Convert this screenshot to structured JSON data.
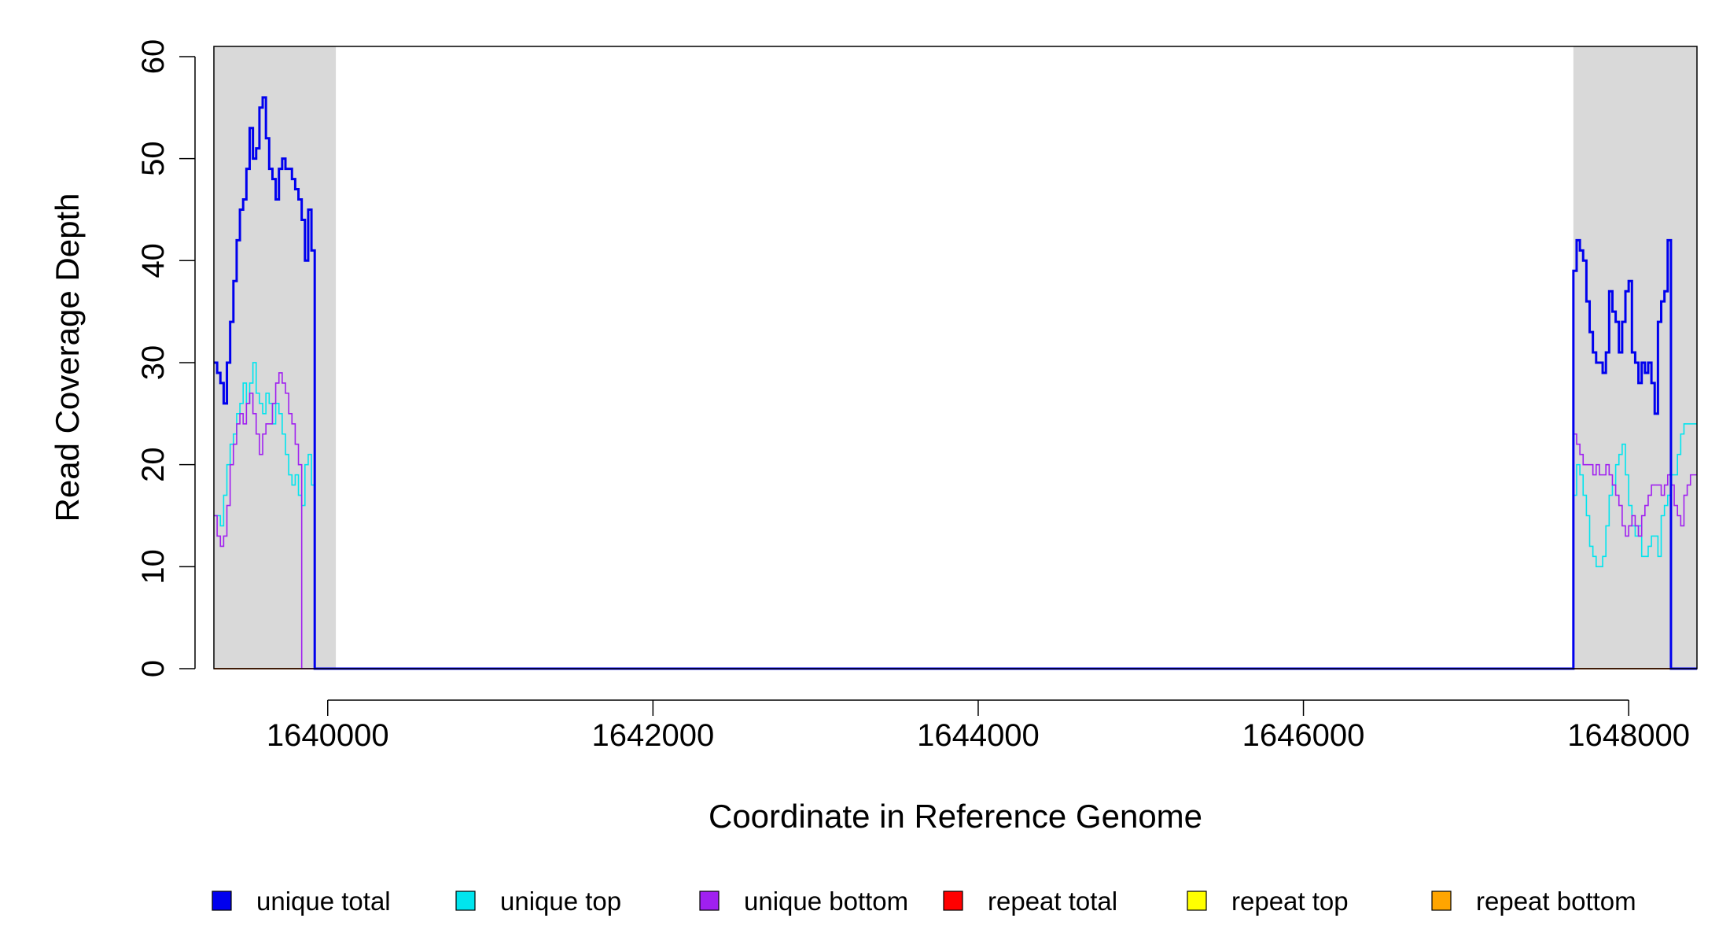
{
  "chart_data": {
    "type": "line",
    "title": "",
    "xlabel": "Coordinate in Reference Genome",
    "ylabel": "Read Coverage Depth",
    "xlim": [
      1639300,
      1648420
    ],
    "ylim": [
      0,
      61
    ],
    "x_ticks": [
      1640000,
      1642000,
      1644000,
      1646000,
      1648000
    ],
    "x_tick_labels": [
      "1640000",
      "1642000",
      "1644000",
      "1646000",
      "1648000"
    ],
    "y_ticks": [
      0,
      10,
      20,
      30,
      40,
      50,
      60
    ],
    "y_tick_labels": [
      "0",
      "10",
      "20",
      "30",
      "40",
      "50",
      "60"
    ],
    "grid": false,
    "legend_position": "bottom",
    "shaded_regions": [
      {
        "x_start": 1639300,
        "x_end": 1640050,
        "color": "#d9d9d9"
      },
      {
        "x_start": 1647660,
        "x_end": 1648420,
        "color": "#d9d9d9"
      }
    ],
    "series": [
      {
        "name": "unique total",
        "color": "#0000ee",
        "width": 3,
        "x": [
          1639300,
          1639320,
          1639340,
          1639360,
          1639380,
          1639400,
          1639420,
          1639440,
          1639460,
          1639480,
          1639500,
          1639520,
          1639540,
          1639560,
          1639580,
          1639600,
          1639620,
          1639640,
          1639660,
          1639680,
          1639700,
          1639720,
          1639740,
          1639760,
          1639780,
          1639800,
          1639820,
          1639840,
          1639860,
          1639880,
          1639900,
          1639920,
          1639940,
          1639960,
          1639980,
          1640000,
          1640020,
          1640040,
          1640060,
          1640080,
          1647660,
          1647680,
          1647700,
          1647720,
          1647740,
          1647760,
          1647780,
          1647800,
          1647820,
          1647840,
          1647860,
          1647880,
          1647900,
          1647920,
          1647940,
          1647960,
          1647980,
          1648000,
          1648020,
          1648040,
          1648060,
          1648080,
          1648100,
          1648120,
          1648140,
          1648160,
          1648180,
          1648200,
          1648220,
          1648240,
          1648260,
          1648280,
          1648300,
          1648320,
          1648340,
          1648360,
          1648380,
          1648400,
          1648420
        ],
        "y": [
          30,
          29,
          28,
          26,
          30,
          34,
          38,
          42,
          45,
          46,
          49,
          53,
          50,
          51,
          55,
          56,
          52,
          49,
          48,
          46,
          49,
          50,
          49,
          49,
          48,
          47,
          46,
          44,
          40,
          45,
          41,
          0,
          0,
          0,
          0,
          0,
          0,
          0,
          0,
          0,
          39,
          42,
          41,
          40,
          36,
          33,
          31,
          30,
          30,
          29,
          31,
          37,
          35,
          34,
          31,
          34,
          37,
          38,
          31,
          30,
          28,
          30,
          29,
          30,
          28,
          25,
          34,
          36,
          37,
          42,
          0,
          0,
          0,
          0,
          0,
          0,
          0,
          0,
          0
        ],
        "note": ""
      },
      {
        "name": "unique top",
        "color": "#00e5ee",
        "width": 1.6,
        "x": [
          1639300,
          1639320,
          1639340,
          1639360,
          1639380,
          1639400,
          1639420,
          1639440,
          1639460,
          1639480,
          1639500,
          1639520,
          1639540,
          1639560,
          1639580,
          1639600,
          1639620,
          1639640,
          1639660,
          1639680,
          1639700,
          1639720,
          1639740,
          1639760,
          1639780,
          1639800,
          1639820,
          1639840,
          1639860,
          1639880,
          1639900,
          1639920,
          1647660,
          1647680,
          1647700,
          1647720,
          1647740,
          1647760,
          1647780,
          1647800,
          1647820,
          1647840,
          1647860,
          1647880,
          1647900,
          1647920,
          1647940,
          1647960,
          1647980,
          1648000,
          1648020,
          1648040,
          1648060,
          1648080,
          1648100,
          1648120,
          1648140,
          1648160,
          1648180,
          1648200,
          1648220,
          1648240,
          1648260,
          1648280,
          1648300,
          1648320,
          1648340,
          1648360,
          1648380,
          1648400,
          1648420
        ],
        "y": [
          15,
          15,
          14,
          17,
          20,
          22,
          23,
          25,
          26,
          28,
          26,
          28,
          30,
          27,
          26,
          25,
          27,
          26,
          24,
          26,
          25,
          23,
          21,
          19,
          18,
          19,
          17,
          16,
          20,
          21,
          18,
          0,
          17,
          20,
          19,
          17,
          15,
          12,
          11,
          10,
          10,
          11,
          14,
          17,
          18,
          20,
          21,
          22,
          19,
          16,
          14,
          13,
          14,
          11,
          11,
          12,
          13,
          13,
          11,
          15,
          16,
          17,
          19,
          19,
          21,
          23,
          24,
          24,
          24,
          24,
          24
        ],
        "note": ""
      },
      {
        "name": "unique bottom",
        "color": "#a020f0",
        "width": 1.6,
        "x": [
          1639300,
          1639320,
          1639340,
          1639360,
          1639380,
          1639400,
          1639420,
          1639440,
          1639460,
          1639480,
          1639500,
          1639520,
          1639540,
          1639560,
          1639580,
          1639600,
          1639620,
          1639640,
          1639660,
          1639680,
          1639700,
          1639720,
          1639740,
          1639760,
          1639780,
          1639800,
          1639820,
          1639840,
          1639860,
          1639880,
          1639900,
          1639920,
          1647660,
          1647680,
          1647700,
          1647720,
          1647740,
          1647760,
          1647780,
          1647800,
          1647820,
          1647840,
          1647860,
          1647880,
          1647900,
          1647920,
          1647940,
          1647960,
          1647980,
          1648000,
          1648020,
          1648040,
          1648060,
          1648080,
          1648100,
          1648120,
          1648140,
          1648160,
          1648180,
          1648200,
          1648220,
          1648240,
          1648260,
          1648280,
          1648300,
          1648320,
          1648340,
          1648360,
          1648380,
          1648400,
          1648420
        ],
        "y": [
          15,
          13,
          12,
          13,
          16,
          20,
          22,
          24,
          25,
          24,
          26,
          27,
          25,
          23,
          21,
          23,
          24,
          24,
          26,
          28,
          29,
          28,
          27,
          25,
          24,
          22,
          20,
          0,
          0,
          0,
          0,
          0,
          23,
          22,
          21,
          20,
          20,
          20,
          19,
          20,
          19,
          19,
          20,
          19,
          18,
          17,
          16,
          14,
          13,
          14,
          15,
          14,
          13,
          15,
          16,
          17,
          18,
          18,
          18,
          17,
          18,
          19,
          18,
          16,
          15,
          14,
          17,
          18,
          19,
          19,
          19
        ],
        "note": ""
      },
      {
        "name": "repeat total",
        "color": "#ff0000",
        "width": 1.6,
        "x": [
          1639300,
          1648420
        ],
        "y": [
          0,
          0
        ]
      },
      {
        "name": "repeat top",
        "color": "#ffff00",
        "width": 1.6,
        "x": [
          1639300,
          1648420
        ],
        "y": [
          0,
          0
        ]
      },
      {
        "name": "repeat bottom",
        "color": "#ffa500",
        "width": 1.6,
        "x": [
          1639300,
          1648420
        ],
        "y": [
          0,
          0
        ]
      }
    ],
    "legend": [
      {
        "label": "unique total",
        "color": "#0000ee"
      },
      {
        "label": "unique top",
        "color": "#00e5ee"
      },
      {
        "label": "unique bottom",
        "color": "#a020f0"
      },
      {
        "label": "repeat total",
        "color": "#ff0000"
      },
      {
        "label": "repeat top",
        "color": "#ffff00"
      },
      {
        "label": "repeat bottom",
        "color": "#ffa500"
      }
    ]
  }
}
